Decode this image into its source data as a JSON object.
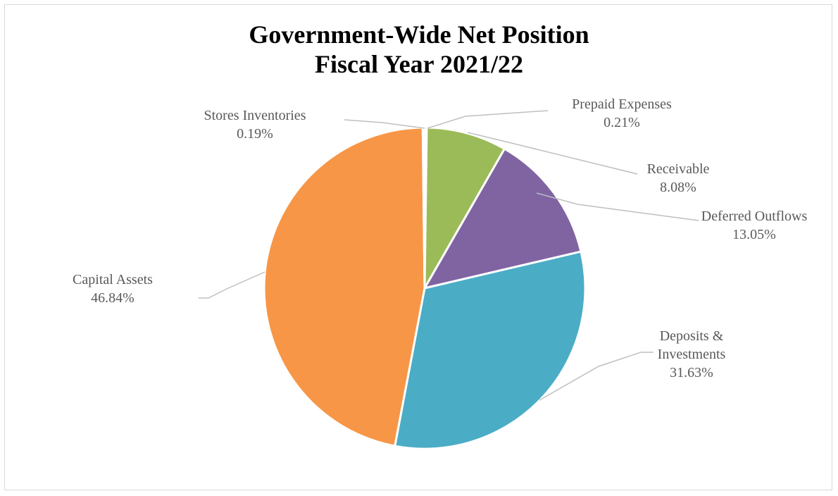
{
  "chart_data": {
    "type": "pie",
    "title": "Government-Wide Net Position",
    "subtitle": "Fiscal Year 2021/22",
    "slices": [
      {
        "label": "Prepaid Expenses",
        "value": 0.21,
        "value_label": "0.21%",
        "color": "#4472C4"
      },
      {
        "label": "Receivable",
        "value": 8.08,
        "value_label": "8.08%",
        "color": "#9BBB59"
      },
      {
        "label": "Deferred Outflows",
        "value": 13.05,
        "value_label": "13.05%",
        "color": "#8064A2"
      },
      {
        "label": "Deposits & Investments",
        "label_lines": [
          "Deposits &",
          "Investments"
        ],
        "value": 31.63,
        "value_label": "31.63%",
        "color": "#4BACC6"
      },
      {
        "label": "Capital Assets",
        "value": 46.84,
        "value_label": "46.84%",
        "color": "#F79646"
      },
      {
        "label": "Stores Inventories",
        "value": 0.19,
        "value_label": "0.19%",
        "color": "#C0504D"
      }
    ],
    "legend": "none"
  }
}
